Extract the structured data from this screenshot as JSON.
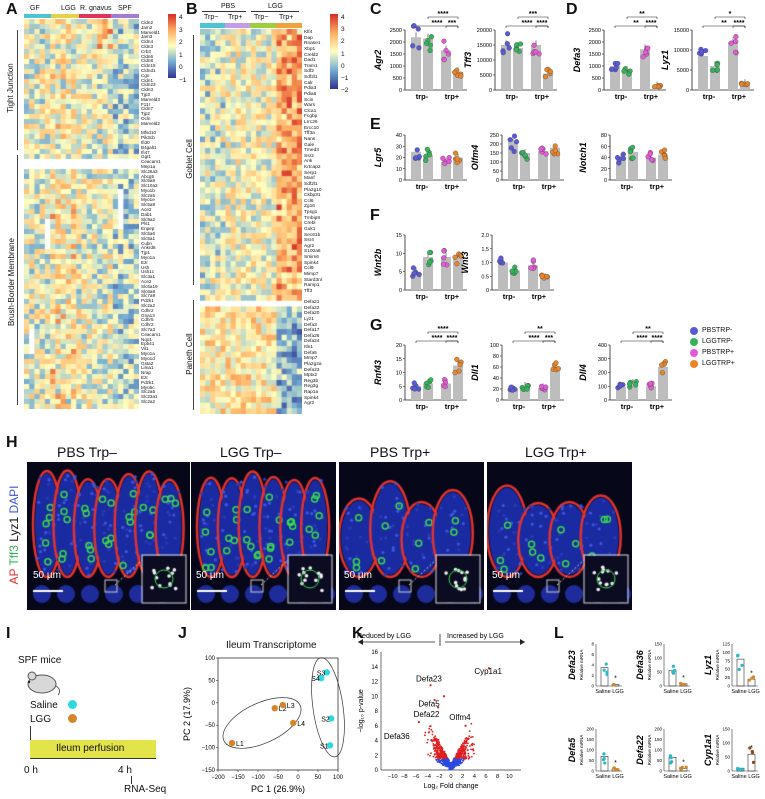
{
  "panel_letters": {
    "A": "A",
    "B": "B",
    "C": "C",
    "D": "D",
    "E": "E",
    "F": "F",
    "G": "G",
    "H": "H",
    "I": "I",
    "J": "J",
    "K": "K",
    "L": "L"
  },
  "colors": {
    "pbs_trp_minus": "#5a5ad8",
    "lgg_trp_minus": "#35b35a",
    "pbs_trp_plus": "#e35ad6",
    "lgg_trp_plus": "#e8852a",
    "saline": "#2ab8c8",
    "lgg": "#d4842a",
    "gf": "#4ec3d1",
    "lgg_group": "#e3d24a",
    "rgnavus": "#e0325c",
    "spf": "#a57ad1",
    "pbs_trp_minus_bar": "#4ec3d1",
    "pbs_trp_plus_bar": "#c79be6",
    "lgg_trp_minus_bar": "#9bcf3c",
    "lgg_trp_plus_bar": "#f0a23c"
  },
  "panelA": {
    "groups": [
      "GF",
      "LGG",
      "R. gnavus",
      "SPF"
    ],
    "section_labels": [
      "Tight Junction",
      "Brush-Border Membrane"
    ],
    "colorbar_ticks": [
      "4",
      "3",
      "2",
      "1",
      "0",
      "−1"
    ],
    "tj_genes": [
      "Cldn2",
      "Jam2",
      "Marveld1",
      "Jam3",
      "Cldn4",
      "Cldn3",
      "Crb3",
      "Cldn6",
      "Cldn8",
      "Cldn15",
      "Cldnd1",
      "Cgn",
      "Cldn1",
      "Cldn23",
      "Cldn3",
      "Tjp3",
      "Marveld3",
      "F11r",
      "Cldn7",
      "Tjp2",
      "Ocln",
      "Marveld2"
    ],
    "bb_genes": [
      "Mfsd10",
      "Pik3cb",
      "Ifi30",
      "B4galt1",
      "Ifi47",
      "Ggt1",
      "Ceacam1",
      "Mep1a",
      "Slc26a3",
      "Abcg5",
      "Slc5a8",
      "Slc10a2",
      "Myo1b",
      "Slc2a5",
      "Myo1e",
      "Slc5a9",
      "Ace2",
      "Dab1",
      "Slc9a2",
      "Pls1",
      "Enpep",
      "Slc5a6",
      "Slc5a1",
      "Cubn",
      "Ankrd6",
      "Tjp1",
      "Myo1a",
      "Ezr",
      "Ush",
      "Ush1c",
      "Slc3a1",
      "Ace2",
      "Slc6a19",
      "Slc6a8",
      "Slc7a9",
      "Pdzk1",
      "Slc2a2",
      "Cdhr2",
      "Gna13",
      "Cdhr5",
      "Cdhr2",
      "Slc7a3",
      "Ceacam1",
      "Nqo1",
      "Epb41",
      "Vil1",
      "Myo1a",
      "Myo1d",
      "Gsta2",
      "Lima1",
      "Nrap",
      "Ezr",
      "Pdzk1",
      "Myo5c",
      "Slc2a5",
      "Slc23a1",
      "Slc2a2"
    ]
  },
  "panelB": {
    "groups": [
      "PBS",
      "LGG"
    ],
    "subgroups": [
      "Trp−",
      "Trp+",
      "Trp−",
      "Trp+"
    ],
    "section_labels": [
      "Goblet Cell",
      "Paneth Cell"
    ],
    "colorbar_ticks": [
      "4",
      "3",
      "2",
      "1",
      "0",
      "−1",
      "−2"
    ],
    "goblet_genes": [
      "Klf4",
      "Dap",
      "Rnase1",
      "Xbp1",
      "Creld2",
      "Dad1",
      "Tram1",
      "Sdf2",
      "Sdf2l1",
      "Calr",
      "Pdia3",
      "Pdia6",
      "Scin",
      "Wars",
      "Clca1",
      "Fcgbp",
      "Lrrc26",
      "Ercc10",
      "Tff3a",
      "Nans",
      "Gale",
      "Tmed3",
      "Ssr2",
      "Ank",
      "Krtcap2",
      "Serp1",
      "Manf",
      "Sdf2l1",
      "Pla2g10",
      "Ckbp31",
      "Ccl6",
      "Zg16",
      "Tpsg1",
      "Tmbip8",
      "Crebl",
      "Guk1",
      "Sec61b",
      "Ssr4",
      "Agr2",
      "S100a6",
      "Smim6",
      "Spink4",
      "Ccl9",
      "Mimp7",
      "Stard3nl",
      "Ramp1",
      "Tff3"
    ],
    "paneth_genes": [
      "Defa21",
      "Defa22",
      "Defa20",
      "Lyz1",
      "Defa3",
      "Defa17",
      "Defa26",
      "Defa24",
      "Itln1",
      "Defa5",
      "Mmp7",
      "Pla2g2a",
      "Defa23",
      "Mptx2",
      "Reg3b",
      "Reg3g",
      "Rap1a",
      "Spink4",
      "Agr2"
    ]
  },
  "x_cats": [
    "trp-",
    "trp+"
  ],
  "sig": {
    "s4": "****",
    "s3": "***",
    "s2": "**",
    "s1": "*"
  },
  "legend": [
    "PBSTRP-",
    "LGGTRP-",
    "PBSTRP+",
    "LGGTRP+"
  ],
  "bar_charts": [
    {
      "id": "agr2",
      "gene": "Agr2",
      "yticks": [
        "0",
        "500",
        "1000",
        "1500",
        "2000",
        "2500"
      ],
      "ymax": 2500,
      "bars": [
        2200,
        2150,
        1650,
        750
      ]
    },
    {
      "id": "tff3",
      "gene": "Tff3",
      "yticks": [
        "0",
        "5000",
        "10000",
        "15000",
        "20000"
      ],
      "ymax": 20000,
      "bars": [
        15000,
        14000,
        15000,
        5500
      ]
    },
    {
      "id": "defa3",
      "gene": "Defa3",
      "yticks": [
        "0",
        "500",
        "1000",
        "1500",
        "2000",
        "2500"
      ],
      "ymax": 2500,
      "bars": [
        1000,
        800,
        1700,
        150
      ]
    },
    {
      "id": "lyz1",
      "gene": "Lyz1",
      "yticks": [
        "0",
        "5000",
        "10000",
        "15000"
      ],
      "ymax": 15000,
      "bars": [
        8500,
        6000,
        12000,
        1500
      ]
    },
    {
      "id": "lgr5",
      "gene": "Lgr5",
      "yticks": [
        "0",
        "10",
        "20",
        "30",
        "40"
      ],
      "ymax": 40,
      "bars": [
        25,
        22,
        16,
        20
      ]
    },
    {
      "id": "olfm4",
      "gene": "Olfm4",
      "yticks": [
        "0",
        "50",
        "100",
        "150",
        "200",
        "250"
      ],
      "ymax": 250,
      "bars": [
        210,
        150,
        160,
        180
      ]
    },
    {
      "id": "notch1",
      "gene": "Notch1",
      "yticks": [
        "0",
        "20",
        "40",
        "60",
        "80"
      ],
      "ymax": 80,
      "bars": [
        40,
        50,
        40,
        45
      ]
    },
    {
      "id": "wnt2b",
      "gene": "Wnt2b",
      "yticks": [
        "0",
        "5",
        "10",
        "15"
      ],
      "ymax": 15,
      "bars": [
        5,
        9,
        9,
        9
      ]
    },
    {
      "id": "wnt3",
      "gene": "Wnt3",
      "yticks": [
        "0",
        "0.5",
        "1.0",
        "1.5",
        "2.0"
      ],
      "ymax": 2.0,
      "bars": [
        1.0,
        0.7,
        0.9,
        0.45
      ]
    },
    {
      "id": "rnf43",
      "gene": "Rnf43",
      "yticks": [
        "0",
        "5",
        "10",
        "15",
        "20"
      ],
      "ymax": 20,
      "bars": [
        5,
        6,
        6,
        12.5
      ]
    },
    {
      "id": "dll1",
      "gene": "Dll1",
      "yticks": [
        "0",
        "20",
        "40",
        "60",
        "80",
        "100"
      ],
      "ymax": 100,
      "bars": [
        20,
        25,
        22,
        55
      ]
    },
    {
      "id": "dll4",
      "gene": "Dll4",
      "yticks": [
        "0",
        "100",
        "200",
        "300",
        "400"
      ],
      "ymax": 400,
      "bars": [
        95,
        120,
        100,
        240
      ]
    }
  ],
  "panelH": {
    "titles": [
      "PBS Trp–",
      "LGG Trp–",
      "PBS Trp+",
      "LGG Trp+"
    ],
    "scale": "50 µm",
    "side_labels": [
      "AP",
      "Tff3",
      "Lyz1",
      "DAPI"
    ]
  },
  "panelI": {
    "mice": "SPF mice",
    "saline": "Saline",
    "lgg": "LGG",
    "perfusion": "Ileum perfusion",
    "t0": "0 h",
    "t4": "4 h",
    "rnaseq": "RNA-Seq"
  },
  "panelJ": {
    "title": "Ileum Transcriptome",
    "xlabel": "PC 1 (26.9%)",
    "ylabel": "PC 2 (17.9%)",
    "xticks": [
      "−200",
      "−150",
      "−100",
      "−50",
      "0",
      "50",
      "100"
    ],
    "yticks": [
      "−150",
      "−100",
      "−50",
      "0",
      "50",
      "100"
    ],
    "points": [
      {
        "label": "L1",
        "x": -165,
        "y": -90,
        "g": "lgg"
      },
      {
        "label": "L2",
        "x": -58,
        "y": -12,
        "g": "lgg"
      },
      {
        "label": "L3",
        "x": -38,
        "y": -5,
        "g": "lgg"
      },
      {
        "label": "L4",
        "x": -12,
        "y": -45,
        "g": "lgg"
      },
      {
        "label": "S3",
        "x": 72,
        "y": 68,
        "g": "saline"
      },
      {
        "label": "S4",
        "x": 58,
        "y": 55,
        "g": "saline"
      },
      {
        "label": "S2",
        "x": 83,
        "y": -35,
        "g": "saline"
      },
      {
        "label": "S1",
        "x": 80,
        "y": -95,
        "g": "saline"
      }
    ]
  },
  "panelK": {
    "left_arrow": "Reduced by LGG",
    "right_arrow": "Increased by LGG",
    "xlabel": "Log₂ Fold change",
    "ylabel": "−log₁₀ p-value",
    "xticks": [
      "−10",
      "−8",
      "−6",
      "−4",
      "−2",
      "0",
      "2",
      "4",
      "6",
      "8",
      "10"
    ],
    "yticks": [
      "0",
      "2",
      "4",
      "6",
      "8",
      "10",
      "12",
      "14",
      "16"
    ],
    "genes": [
      "Defa23",
      "Defa5",
      "Defa22",
      "Olfm4",
      "Defa36",
      "Cyp1a1"
    ]
  },
  "panelL": {
    "ylabel": "Relative mRNA",
    "xcats": [
      "Saline",
      "LGG"
    ],
    "charts": [
      {
        "gene": "Defa23",
        "yticks": [
          "0",
          "2",
          "4",
          "6",
          "8"
        ],
        "ymax": 8,
        "vals": [
          3.5,
          0.3
        ],
        "sig": "*"
      },
      {
        "gene": "Defa36",
        "yticks": [
          "0",
          "50",
          "100",
          "150"
        ],
        "ymax": 150,
        "vals": [
          55,
          8
        ],
        "sig": "*"
      },
      {
        "gene": "Lyz1",
        "yticks": [
          "0",
          "25",
          "50",
          "75",
          "100",
          "125"
        ],
        "ymax": 125,
        "vals": [
          80,
          20
        ],
        "sig": "*"
      },
      {
        "gene": "Defa5",
        "yticks": [
          "0",
          "50",
          "100",
          "150",
          "200"
        ],
        "ymax": 200,
        "vals": [
          70,
          10
        ],
        "sig": "*"
      },
      {
        "gene": "Defa22",
        "yticks": [
          "0",
          "50",
          "100",
          "150",
          "200"
        ],
        "ymax": 200,
        "vals": [
          65,
          12
        ],
        "sig": "*"
      },
      {
        "gene": "Cyp1a1",
        "yticks": [
          "0",
          "50",
          "100",
          "150"
        ],
        "ymax": 150,
        "vals": [
          10,
          60
        ],
        "sig": "*"
      }
    ]
  }
}
